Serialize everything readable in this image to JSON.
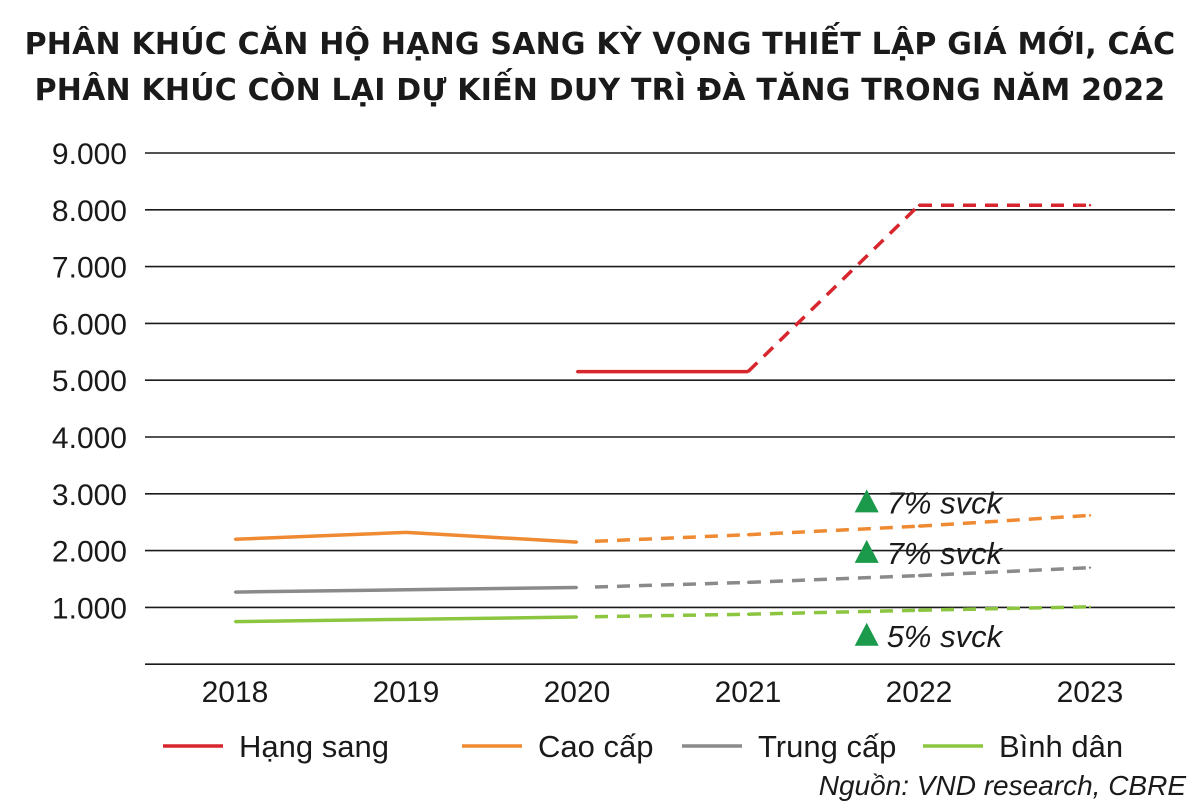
{
  "title_lines": [
    "PHÂN KHÚC CĂN HỘ HẠNG SANG KỲ VỌNG THIẾT LẬP GIÁ MỚI, CÁC",
    "PHÂN KHÚC CÒN LẠI DỰ KIẾN DUY TRÌ ĐÀ TĂNG TRONG NĂM 2022"
  ],
  "source": "Nguồn: VND research, CBRE",
  "chart_data": {
    "type": "line",
    "title": "PHÂN KHÚC CĂN HỘ HẠNG SANG KỲ VỌNG THIẾT LẬP GIÁ MỚI, CÁC PHÂN KHÚC CÒN LẠI DỰ KIẾN DUY TRÌ ĐÀ TĂNG TRONG NĂM 2022",
    "categories": [
      "2018",
      "2019",
      "2020",
      "2021",
      "2022",
      "2023"
    ],
    "ylim": [
      0,
      9000
    ],
    "yticks": [
      1000,
      2000,
      3000,
      4000,
      5000,
      6000,
      7000,
      8000,
      9000
    ],
    "ytick_labels": [
      "1.000",
      "2.000",
      "3.000",
      "4.000",
      "5.000",
      "6.000",
      "7.000",
      "8.000",
      "9.000"
    ],
    "grid": true,
    "series": [
      {
        "name": "Hạng sang",
        "color": "#d7262d",
        "values": [
          null,
          null,
          5150,
          5150,
          8080,
          8080
        ],
        "forecast_from_index": 3
      },
      {
        "name": "Cao cấp",
        "color": "#ef8a32",
        "values": [
          2200,
          2320,
          2150,
          2280,
          2430,
          2620
        ],
        "forecast_from_index": 2
      },
      {
        "name": "Trung cấp",
        "color": "#8a8a8a",
        "values": [
          1270,
          1310,
          1350,
          1440,
          1560,
          1700
        ],
        "forecast_from_index": 2
      },
      {
        "name": "Bình dân",
        "color": "#8cc540",
        "values": [
          750,
          790,
          830,
          880,
          950,
          1010
        ],
        "forecast_from_index": 2
      }
    ],
    "annotations": [
      {
        "text": "7% svck",
        "x_index": 3.7,
        "y": 2850,
        "marker": "up-triangle",
        "color": "#1a9a4a"
      },
      {
        "text": "7% svck",
        "x_index": 3.7,
        "y": 1960,
        "marker": "up-triangle",
        "color": "#1a9a4a"
      },
      {
        "text": "5% svck",
        "x_index": 3.7,
        "y": 500,
        "marker": "up-triangle",
        "color": "#1a9a4a"
      }
    ],
    "legend_position": "bottom"
  }
}
